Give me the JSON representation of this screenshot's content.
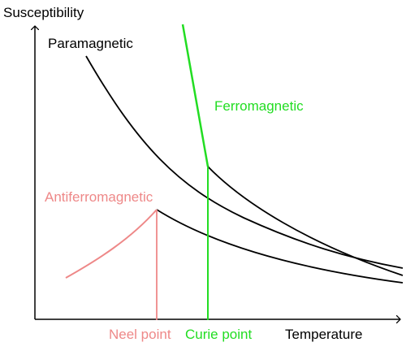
{
  "diagram": {
    "y_axis_label": "Susceptibility",
    "x_axis_label": "Temperature",
    "curves": {
      "paramagnetic": {
        "label": "Paramagnetic",
        "color": "#000000"
      },
      "ferromagnetic": {
        "label": "Ferromagnetic",
        "color": "#22dd22"
      },
      "antiferromagnetic": {
        "label": "Antiferromagnetic",
        "color": "#ee8888"
      }
    },
    "markers": {
      "neel_point": {
        "label": "Neel point",
        "color": "#ee8888"
      },
      "curie_point": {
        "label": "Curie point",
        "color": "#22dd22"
      }
    },
    "axis_color": "#000000"
  }
}
